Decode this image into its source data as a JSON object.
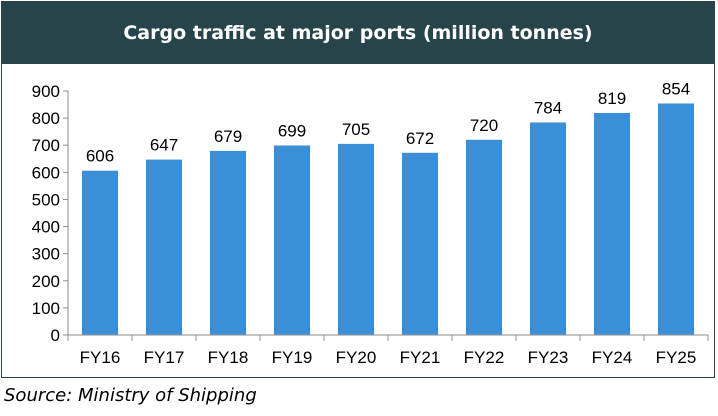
{
  "chart_data": {
    "type": "bar",
    "title": "Cargo traffic at major ports (million tonnes)",
    "categories": [
      "FY16",
      "FY17",
      "FY18",
      "FY19",
      "FY20",
      "FY21",
      "FY22",
      "FY23",
      "FY24",
      "FY25"
    ],
    "values": [
      606,
      647,
      679,
      699,
      705,
      672,
      720,
      784,
      819,
      854
    ],
    "ylim": [
      0,
      900
    ],
    "yticks": [
      0,
      100,
      200,
      300,
      400,
      500,
      600,
      700,
      800,
      900
    ],
    "xlabel": "",
    "ylabel": "",
    "grid": false,
    "data_labels": true,
    "bar_color": "#3a8fd6"
  },
  "source": "Source: Ministry of Shipping",
  "colors": {
    "title_background": "#27444b",
    "title_text": "#ffffff",
    "axis": "#8c8c8c"
  }
}
